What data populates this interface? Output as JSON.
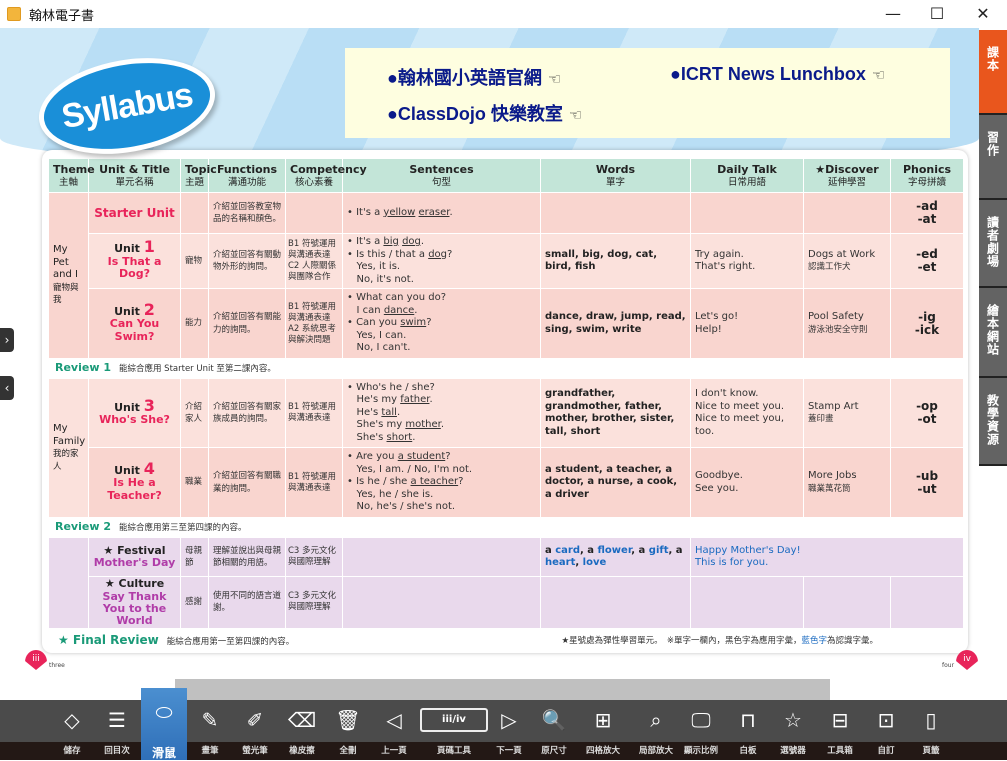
{
  "window": {
    "title": "翰林電子書",
    "minimize": "—",
    "maximize": "☐",
    "close": "✕"
  },
  "logo": "Syllabus",
  "links": [
    {
      "label": "●翰林國小英語官網"
    },
    {
      "label": "●ICRT News Lunchbox"
    },
    {
      "label": "●ClassDojo 快樂教室"
    }
  ],
  "link_hand": "☜",
  "headers": [
    {
      "en": "Theme",
      "zh": "主軸"
    },
    {
      "en": "Unit & Title",
      "zh": "單元名稱"
    },
    {
      "en": "Topic",
      "zh": "主題"
    },
    {
      "en": "Functions",
      "zh": "溝通功能"
    },
    {
      "en": "Competency",
      "zh": "核心素養"
    },
    {
      "en": "Sentences",
      "zh": "句型"
    },
    {
      "en": "Words",
      "zh": "單字"
    },
    {
      "en": "Daily Talk",
      "zh": "日常用語"
    },
    {
      "en": "★Discover",
      "zh": "延伸學習"
    },
    {
      "en": "Phonics",
      "zh": "字母拼讀"
    }
  ],
  "themes": {
    "pet": {
      "en1": "My Pet",
      "en2": "and I",
      "zh": "寵物與我"
    },
    "family": {
      "en1": "My",
      "en2": "Family",
      "zh": "我的家人"
    }
  },
  "rows": [
    {
      "unit": "",
      "title": "Starter Unit",
      "topic": "",
      "functions": "介紹並回答教室物品的名稱和顏色。",
      "competency": "",
      "sentences": [
        [
          {
            "t": "• It's a "
          },
          {
            "t": "yellow",
            "u": true
          },
          {
            "t": " "
          },
          {
            "t": "eraser",
            "u": true
          },
          {
            "t": "."
          }
        ]
      ],
      "words": "",
      "daily": [
        "",
        ""
      ],
      "discover": {
        "en": "",
        "zh": ""
      },
      "phonics": [
        "-ad",
        "-at"
      ]
    },
    {
      "unit": "Unit ",
      "num": "1",
      "title": "Is That a Dog?",
      "topic": "寵物",
      "functions": "介紹並回答有關動物外形的詢問。",
      "competency": "B1 符號運用與溝通表達 C2 人際關係與團隊合作",
      "sentences": [
        [
          {
            "t": "• It's a "
          },
          {
            "t": "big",
            "u": true
          },
          {
            "t": " "
          },
          {
            "t": "dog",
            "u": true
          },
          {
            "t": "."
          }
        ],
        [
          {
            "t": "• Is this / that a "
          },
          {
            "t": "dog",
            "u": true
          },
          {
            "t": "?"
          }
        ],
        [
          {
            "t": "   Yes, it is."
          }
        ],
        [
          {
            "t": "   No, it's not."
          }
        ]
      ],
      "words": "small, big, dog, cat, bird, fish",
      "daily": [
        "Try again.",
        "That's right."
      ],
      "discover": {
        "en": "Dogs at Work",
        "zh": "認識工作犬"
      },
      "phonics": [
        "-ed",
        "-et"
      ]
    },
    {
      "unit": "Unit ",
      "num": "2",
      "title": "Can You Swim?",
      "topic": "能力",
      "functions": "介紹並回答有關能力的詢問。",
      "competency": "B1 符號運用與溝通表達 A2 系統思考與解決問題",
      "sentences": [
        [
          {
            "t": "• What can you do?"
          }
        ],
        [
          {
            "t": "   I can "
          },
          {
            "t": "dance",
            "u": true
          },
          {
            "t": "."
          }
        ],
        [
          {
            "t": "• Can you "
          },
          {
            "t": "swim",
            "u": true
          },
          {
            "t": "?"
          }
        ],
        [
          {
            "t": "   Yes, I can."
          }
        ],
        [
          {
            "t": "   No, I can't."
          }
        ]
      ],
      "words": "dance, draw, jump, read, sing, swim, write",
      "daily": [
        "Let's go!",
        "Help!"
      ],
      "discover": {
        "en": "Pool Safety",
        "zh": "游泳池安全守則"
      },
      "phonics": [
        "-ig",
        "-ick"
      ]
    },
    {
      "unit": "Unit ",
      "num": "3",
      "title": "Who's She?",
      "topic": "介紹家人",
      "functions": "介紹並回答有關家族成員的詢問。",
      "competency": "B1 符號運用與溝通表達",
      "sentences": [
        [
          {
            "t": "• Who's he / she?"
          }
        ],
        [
          {
            "t": "   He's my "
          },
          {
            "t": "father",
            "u": true
          },
          {
            "t": "."
          }
        ],
        [
          {
            "t": "   He's "
          },
          {
            "t": "tall",
            "u": true
          },
          {
            "t": "."
          }
        ],
        [
          {
            "t": "   She's my "
          },
          {
            "t": "mother",
            "u": true
          },
          {
            "t": "."
          }
        ],
        [
          {
            "t": "   She's "
          },
          {
            "t": "short",
            "u": true
          },
          {
            "t": "."
          }
        ]
      ],
      "words": "grandfather, grandmother, father, mother, brother, sister, tall, short",
      "daily": [
        "I don't know.",
        "Nice to meet you.",
        "Nice to meet you, too."
      ],
      "discover": {
        "en": "Stamp Art",
        "zh": "蓋印畫"
      },
      "phonics": [
        "-op",
        "-ot"
      ]
    },
    {
      "unit": "Unit ",
      "num": "4",
      "title": "Is He a Teacher?",
      "topic": "職業",
      "functions": "介紹並回答有關職業的詢問。",
      "competency": "B1 符號運用與溝通表達",
      "sentences": [
        [
          {
            "t": "• Are you "
          },
          {
            "t": "a student",
            "u": true
          },
          {
            "t": "?"
          }
        ],
        [
          {
            "t": "   Yes, I am. / No, I'm not."
          }
        ],
        [
          {
            "t": "• Is he / she "
          },
          {
            "t": "a teacher",
            "u": true
          },
          {
            "t": "?"
          }
        ],
        [
          {
            "t": "   Yes, he / she is."
          }
        ],
        [
          {
            "t": "   No, he's / she's not."
          }
        ]
      ],
      "words": "a student, a teacher, a doctor, a nurse, a cook, a driver",
      "daily": [
        "Goodbye.",
        "See you."
      ],
      "discover": {
        "en": "More Jobs",
        "zh": "職業萬花筒"
      },
      "phonics": [
        "-ub",
        "-ut"
      ]
    }
  ],
  "reviews": [
    {
      "label": "Review 1",
      "text": "能綜合應用 Starter Unit 至第二課內容。"
    },
    {
      "label": "Review 2",
      "text": "能綜合應用第三至第四課的內容。"
    }
  ],
  "specials": [
    {
      "kind": "★ Festival",
      "title": "Mother's Day",
      "topic": "母親節",
      "functions": "理解並說出與母親節相關的用語。",
      "competency": "C3 多元文化與國際理解",
      "words": [
        {
          "t": "a "
        },
        {
          "t": "card",
          "b": true
        },
        {
          "t": ", a "
        },
        {
          "t": "flower",
          "b": true
        },
        {
          "t": ", a "
        },
        {
          "t": "gift",
          "b": true
        },
        {
          "t": ", a "
        },
        {
          "t": "heart",
          "b": true
        },
        {
          "t": ", "
        },
        {
          "t": "love",
          "b": true
        }
      ],
      "daily": [
        "Happy Mother's Day!",
        "This is for you."
      ]
    },
    {
      "kind": "★ Culture",
      "title": "Say Thank You to the World",
      "topic": "感謝",
      "functions": "使用不同的語言道謝。",
      "competency": "C3 多元文化與國際理解"
    }
  ],
  "final": {
    "label": "★ Final Review",
    "text": "能綜合應用第一至第四課的內容。"
  },
  "note": {
    "a": "★星號處為彈性學習單元。　※單字一欄內，黑色字為應用字彙，",
    "blue": "藍色字",
    "b": "為認識字彙。"
  },
  "pages": {
    "left": "iii",
    "left_word": "three",
    "right": "iv",
    "right_word": "four"
  },
  "side_tabs": [
    {
      "label": "課本",
      "active": true
    },
    {
      "label": "習作"
    },
    {
      "label": "讀者劇場"
    },
    {
      "label": "繪本網站"
    },
    {
      "label": "教學資源"
    }
  ],
  "page_indicator": "iii/iv",
  "toolbar": [
    {
      "label": "儲存",
      "icon": "◇"
    },
    {
      "label": "回目次",
      "icon": "☰"
    },
    {
      "label": "滑鼠",
      "icon": "⬭",
      "active": true
    },
    {
      "label": "畫筆",
      "icon": "✎"
    },
    {
      "label": "螢光筆",
      "icon": "✐"
    },
    {
      "label": "橡皮擦",
      "icon": "⌫"
    },
    {
      "label": "全刪",
      "icon": "🗑"
    },
    {
      "label": "上一頁",
      "icon": "◁"
    },
    {
      "label": "頁碼工具",
      "icon": ""
    },
    {
      "label": "下一頁",
      "icon": "▷"
    },
    {
      "label": "原尺寸",
      "icon": "🔍"
    },
    {
      "label": "四格放大",
      "icon": "⊞"
    },
    {
      "label": "局部放大",
      "icon": "⌕"
    },
    {
      "label": "顯示比例",
      "icon": "🖵"
    },
    {
      "label": "白板",
      "icon": "⊓"
    },
    {
      "label": "選號器",
      "icon": "☆"
    },
    {
      "label": "工具箱",
      "icon": "⊟"
    },
    {
      "label": "自訂",
      "icon": "⊡"
    },
    {
      "label": "頁籤",
      "icon": "▯"
    }
  ],
  "colors": {
    "accent_tab": "#e9561d",
    "unit_title": "#e8245a",
    "special_title": "#b03ca8",
    "review": "#1a9a78",
    "toolbar": "#4b4b4b",
    "active_tool": "#3a7fc4"
  }
}
